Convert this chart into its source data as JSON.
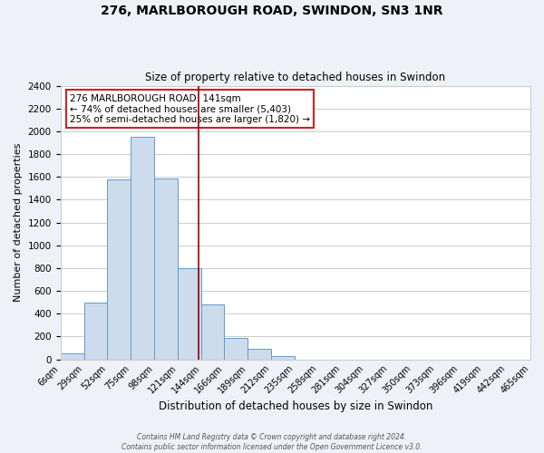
{
  "title": "276, MARLBOROUGH ROAD, SWINDON, SN3 1NR",
  "subtitle": "Size of property relative to detached houses in Swindon",
  "xlabel": "Distribution of detached houses by size in Swindon",
  "ylabel": "Number of detached properties",
  "bar_color": "#ccdcec",
  "bar_edge_color": "#6699cc",
  "bin_edges": [
    6,
    29,
    52,
    75,
    98,
    121,
    144,
    166,
    189,
    212,
    235,
    258,
    281,
    304,
    327,
    350,
    373,
    396,
    419,
    442,
    465
  ],
  "bar_heights": [
    50,
    500,
    1580,
    1950,
    1590,
    800,
    480,
    190,
    90,
    30,
    0,
    0,
    0,
    0,
    0,
    0,
    0,
    0,
    0,
    0
  ],
  "tick_labels": [
    "6sqm",
    "29sqm",
    "52sqm",
    "75sqm",
    "98sqm",
    "121sqm",
    "144sqm",
    "166sqm",
    "189sqm",
    "212sqm",
    "235sqm",
    "258sqm",
    "281sqm",
    "304sqm",
    "327sqm",
    "350sqm",
    "373sqm",
    "396sqm",
    "419sqm",
    "442sqm",
    "465sqm"
  ],
  "ylim": [
    0,
    2400
  ],
  "yticks": [
    0,
    200,
    400,
    600,
    800,
    1000,
    1200,
    1400,
    1600,
    1800,
    2000,
    2200,
    2400
  ],
  "vline_x": 141,
  "vline_color": "#990000",
  "annotation_line1": "276 MARLBOROUGH ROAD: 141sqm",
  "annotation_line2": "← 74% of detached houses are smaller (5,403)",
  "annotation_line3": "25% of semi-detached houses are larger (1,820) →",
  "footer_text": "Contains HM Land Registry data © Crown copyright and database right 2024.\nContains public sector information licensed under the Open Government Licence v3.0.",
  "background_color": "#eef2f7",
  "plot_background_color": "#ffffff",
  "grid_color": "#cccccc"
}
